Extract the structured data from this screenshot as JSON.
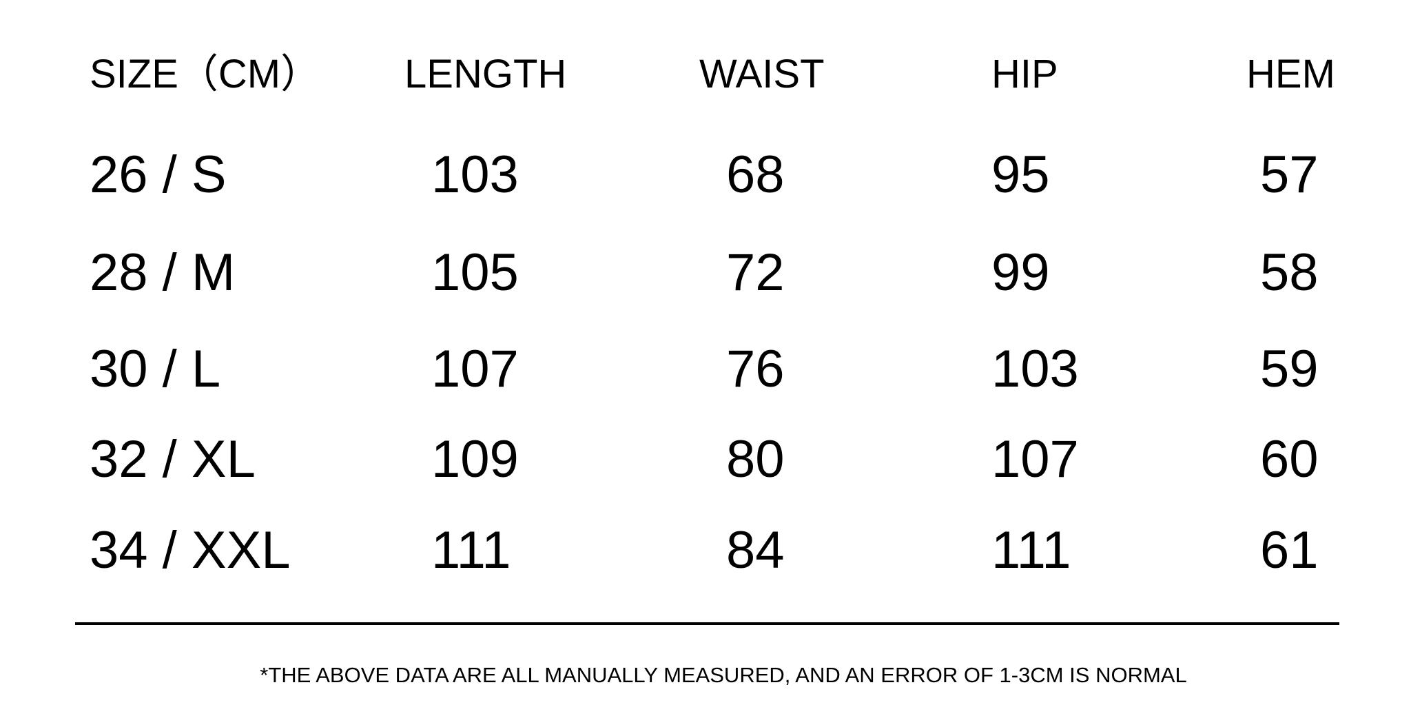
{
  "headers": [
    "SIZE（CM）",
    "LENGTH",
    "WAIST",
    "HIP",
    "HEM"
  ],
  "rows": [
    [
      "26 / S",
      "103",
      "68",
      "95",
      "57"
    ],
    [
      "28 / M",
      "105",
      "72",
      "99",
      "58"
    ],
    [
      "30 / L",
      "107",
      "76",
      "103",
      "59"
    ],
    [
      "32 / XL",
      "109",
      "80",
      "107",
      "60"
    ],
    [
      "34 / XXL",
      "111",
      "84",
      "111",
      "61"
    ]
  ],
  "footnote": "*THE ABOVE DATA ARE ALL MANUALLY MEASURED, AND AN ERROR OF 1-3CM IS NORMAL"
}
